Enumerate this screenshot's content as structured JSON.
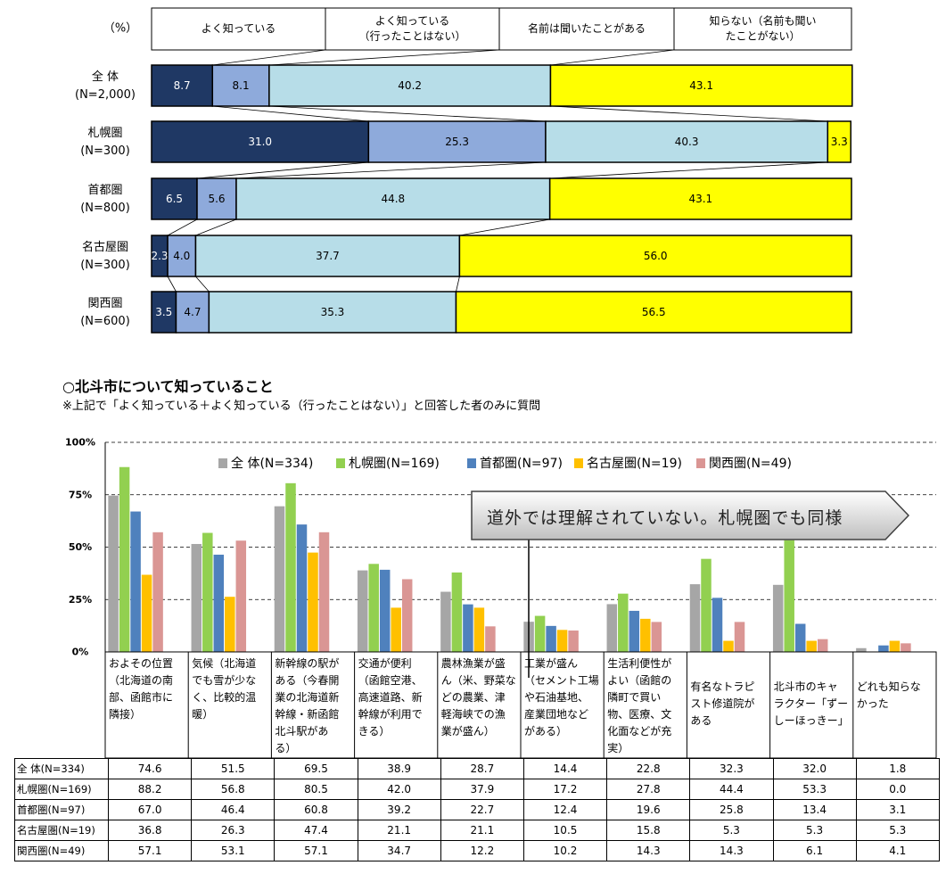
{
  "chart_data": [
    {
      "type": "bar",
      "stacked": true,
      "orientation": "horizontal",
      "unit_label": "（%）",
      "legend": [
        "よく知っている",
        "よく知っている\n（行ったことはない）",
        "名前は聞いたことがある",
        "知らない（名前も聞い\nたことがない）"
      ],
      "colors": [
        "#1f3864",
        "#8eaadb",
        "#b7dde8",
        "#ffff00"
      ],
      "categories": [
        "全 体\n(N=2,000)",
        "札幌圏\n(N=300)",
        "首都圏\n(N=800)",
        "名古屋圏\n(N=300)",
        "関西圏\n(N=600)"
      ],
      "series": [
        {
          "name": "よく知っている",
          "values": [
            8.7,
            31.0,
            6.5,
            2.3,
            3.5
          ]
        },
        {
          "name": "よく知っている（行ったことはない）",
          "values": [
            8.1,
            25.3,
            5.6,
            4.0,
            4.7
          ]
        },
        {
          "name": "名前は聞いたことがある",
          "values": [
            40.2,
            40.3,
            44.8,
            37.7,
            35.3
          ]
        },
        {
          "name": "知らない（名前も聞いたことがない）",
          "values": [
            43.1,
            3.3,
            43.1,
            56.0,
            56.5
          ]
        }
      ],
      "value_labels": [
        [
          "8.7",
          "8.1",
          "40.2",
          "43.1"
        ],
        [
          "31.0",
          "25.3",
          "40.3",
          "3.3"
        ],
        [
          "6.5",
          "5.6",
          "44.8",
          "43.1"
        ],
        [
          "2.3",
          "4.0",
          "37.7",
          "56.0"
        ],
        [
          "3.5",
          "4.7",
          "35.3",
          "56.5"
        ]
      ],
      "xlim": [
        0,
        100
      ]
    },
    {
      "type": "bar",
      "title": "○北斗市について知っていること",
      "subtitle": "※上記で「よく知っている＋よく知っている（行ったことはない）」と回答した者のみに質問",
      "yticks": [
        "100%",
        "75%",
        "50%",
        "25%",
        "0%"
      ],
      "ylim": [
        0,
        100
      ],
      "colors": [
        "#a6a6a6",
        "#92d050",
        "#4f81bd",
        "#ffc000",
        "#da9694"
      ],
      "categories": [
        "およその位置\n（北海道の南\n部、函館市に\n隣接）",
        "気候（北海道\nでも雪が少な\nく、比較的温\n暖）",
        "新幹線の駅が\nある（今春開\n業の北海道新\n幹線・新函館\n北斗駅があ\nる）",
        "交通が便利\n（函館空港、\n高速道路、新\n幹線が利用で\nきる）",
        "農林漁業が盛\nん（米、野菜な\nどの農業、津\n軽海峡での漁\n業が盛ん）",
        "工業が盛ん\n（セメント工場\nや石油基地、\n産業団地など\nがある）",
        "生活利便性が\nよい（函館の\n隣町で買い\n物、医療、文\n化面などが充\n実）",
        "有名なトラピ\nスト修道院が\nある",
        "北斗市のキャ\nラクター「ずー\nしーほっきー」",
        "どれも知らな\nかった"
      ],
      "series": [
        {
          "name": "全 体(N=334)",
          "values": [
            74.6,
            51.5,
            69.5,
            38.9,
            28.7,
            14.4,
            22.8,
            32.3,
            32.0,
            1.8
          ]
        },
        {
          "name": "札幌圏(N=169)",
          "values": [
            88.2,
            56.8,
            80.5,
            42.0,
            37.9,
            17.2,
            27.8,
            44.4,
            53.3,
            0.0
          ]
        },
        {
          "name": "首都圏(N=97)",
          "values": [
            67.0,
            46.4,
            60.8,
            39.2,
            22.7,
            12.4,
            19.6,
            25.8,
            13.4,
            3.1
          ]
        },
        {
          "name": "名古屋圏(N=19)",
          "values": [
            36.8,
            26.3,
            47.4,
            21.1,
            21.1,
            10.5,
            15.8,
            5.3,
            5.3,
            5.3
          ]
        },
        {
          "name": "関西圏(N=49)",
          "values": [
            57.1,
            53.1,
            57.1,
            34.7,
            12.2,
            10.2,
            14.3,
            14.3,
            6.1,
            4.1
          ]
        }
      ],
      "table_values": [
        [
          "74.6",
          "51.5",
          "69.5",
          "38.9",
          "28.7",
          "14.4",
          "22.8",
          "32.3",
          "32.0",
          "1.8"
        ],
        [
          "88.2",
          "56.8",
          "80.5",
          "42.0",
          "37.9",
          "17.2",
          "27.8",
          "44.4",
          "53.3",
          "0.0"
        ],
        [
          "67.0",
          "46.4",
          "60.8",
          "39.2",
          "22.7",
          "12.4",
          "19.6",
          "25.8",
          "13.4",
          "3.1"
        ],
        [
          "36.8",
          "26.3",
          "47.4",
          "21.1",
          "21.1",
          "10.5",
          "15.8",
          "5.3",
          "5.3",
          "5.3"
        ],
        [
          "57.1",
          "53.1",
          "57.1",
          "34.7",
          "12.2",
          "10.2",
          "14.3",
          "14.3",
          "6.1",
          "4.1"
        ]
      ],
      "legend_placement": "top",
      "grid": "dashed-horizontal",
      "callout": "道外では理解されていない。札幌圏でも同様"
    }
  ]
}
